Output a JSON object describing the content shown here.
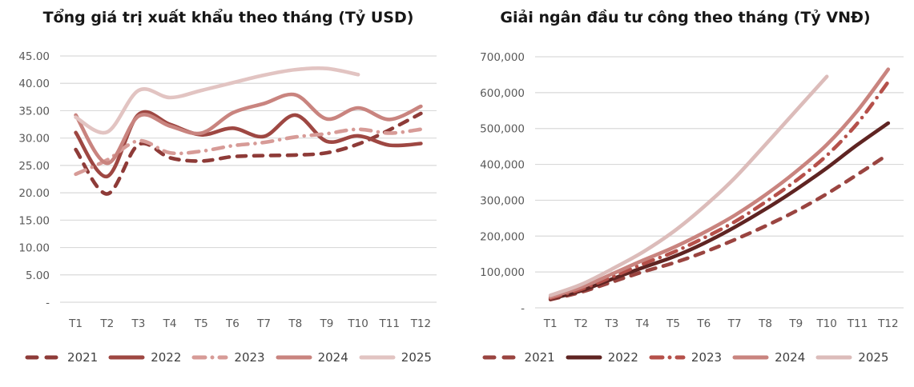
{
  "chart_data": [
    {
      "type": "line",
      "title": "Tổng giá trị xuất khẩu theo tháng (Tỷ USD)",
      "xlabel": "",
      "ylabel": "",
      "categories": [
        "T1",
        "T2",
        "T3",
        "T4",
        "T5",
        "T6",
        "T7",
        "T8",
        "T9",
        "T10",
        "T11",
        "T12"
      ],
      "ylim": [
        0,
        45
      ],
      "ytick_labels": [
        "-",
        "5.00",
        "10.00",
        "15.00",
        "20.00",
        "25.00",
        "30.00",
        "35.00",
        "40.00",
        "45.00"
      ],
      "grid": true,
      "legend_position": "bottom",
      "series": [
        {
          "name": "2021",
          "line_style": "dashed",
          "color": "#8E3B38",
          "values": [
            27.9,
            19.8,
            28.8,
            26.4,
            25.8,
            26.6,
            26.8,
            26.9,
            27.3,
            28.9,
            31.5,
            34.5
          ]
        },
        {
          "name": "2022",
          "line_style": "solid",
          "color": "#9E4742",
          "values": [
            31.0,
            23.0,
            34.3,
            32.5,
            30.6,
            31.8,
            30.3,
            34.2,
            29.4,
            30.4,
            28.7,
            29.0
          ]
        },
        {
          "name": "2023",
          "line_style": "dashdot",
          "color": "#D79B97",
          "values": [
            23.4,
            26.0,
            29.5,
            27.3,
            27.6,
            28.6,
            29.2,
            30.2,
            30.8,
            31.6,
            30.9,
            31.6
          ]
        },
        {
          "name": "2024",
          "line_style": "solid",
          "color": "#C9847F",
          "values": [
            34.2,
            25.4,
            34.0,
            32.2,
            30.9,
            34.6,
            36.3,
            37.9,
            33.5,
            35.5,
            33.4,
            35.8
          ]
        },
        {
          "name": "2025",
          "line_style": "solid",
          "color": "#E2C4C2",
          "values": [
            33.8,
            31.1,
            38.7,
            37.4,
            38.7,
            40.1,
            41.5,
            42.5,
            42.7,
            41.6
          ]
        }
      ]
    },
    {
      "type": "line",
      "title": "Giải ngân đầu tư công theo tháng (Tỷ VNĐ)",
      "xlabel": "",
      "ylabel": "",
      "categories": [
        "T1",
        "T2",
        "T3",
        "T4",
        "T5",
        "T6",
        "T7",
        "T8",
        "T9",
        "T10",
        "T11",
        "T12"
      ],
      "ylim": [
        0,
        700000
      ],
      "ytick_labels": [
        "-",
        "100,000",
        "200,000",
        "300,000",
        "400,000",
        "500,000",
        "600,000",
        "700,000"
      ],
      "grid": true,
      "legend_position": "bottom",
      "series": [
        {
          "name": "2021",
          "line_style": "dashed",
          "color": "#9A4440",
          "values": [
            23000,
            44000,
            72000,
            100000,
            125000,
            155000,
            190000,
            228000,
            270000,
            318000,
            372000,
            428000
          ]
        },
        {
          "name": "2022",
          "line_style": "solid",
          "color": "#5F2422",
          "values": [
            25000,
            48000,
            80000,
            112000,
            142000,
            180000,
            225000,
            275000,
            330000,
            390000,
            455000,
            515000
          ]
        },
        {
          "name": "2023",
          "line_style": "dashdot",
          "color": "#B5504A",
          "values": [
            27000,
            52000,
            86000,
            122000,
            155000,
            195000,
            240000,
            295000,
            355000,
            425000,
            515000,
            630000
          ]
        },
        {
          "name": "2024",
          "line_style": "solid",
          "color": "#C9847F",
          "values": [
            30000,
            57000,
            94000,
            132000,
            168000,
            210000,
            258000,
            315000,
            380000,
            455000,
            550000,
            665000
          ]
        },
        {
          "name": "2025",
          "line_style": "solid",
          "color": "#DCBCBA",
          "values": [
            35000,
            65000,
            108000,
            155000,
            212000,
            282000,
            362000,
            455000,
            550000,
            645000
          ]
        }
      ]
    }
  ]
}
